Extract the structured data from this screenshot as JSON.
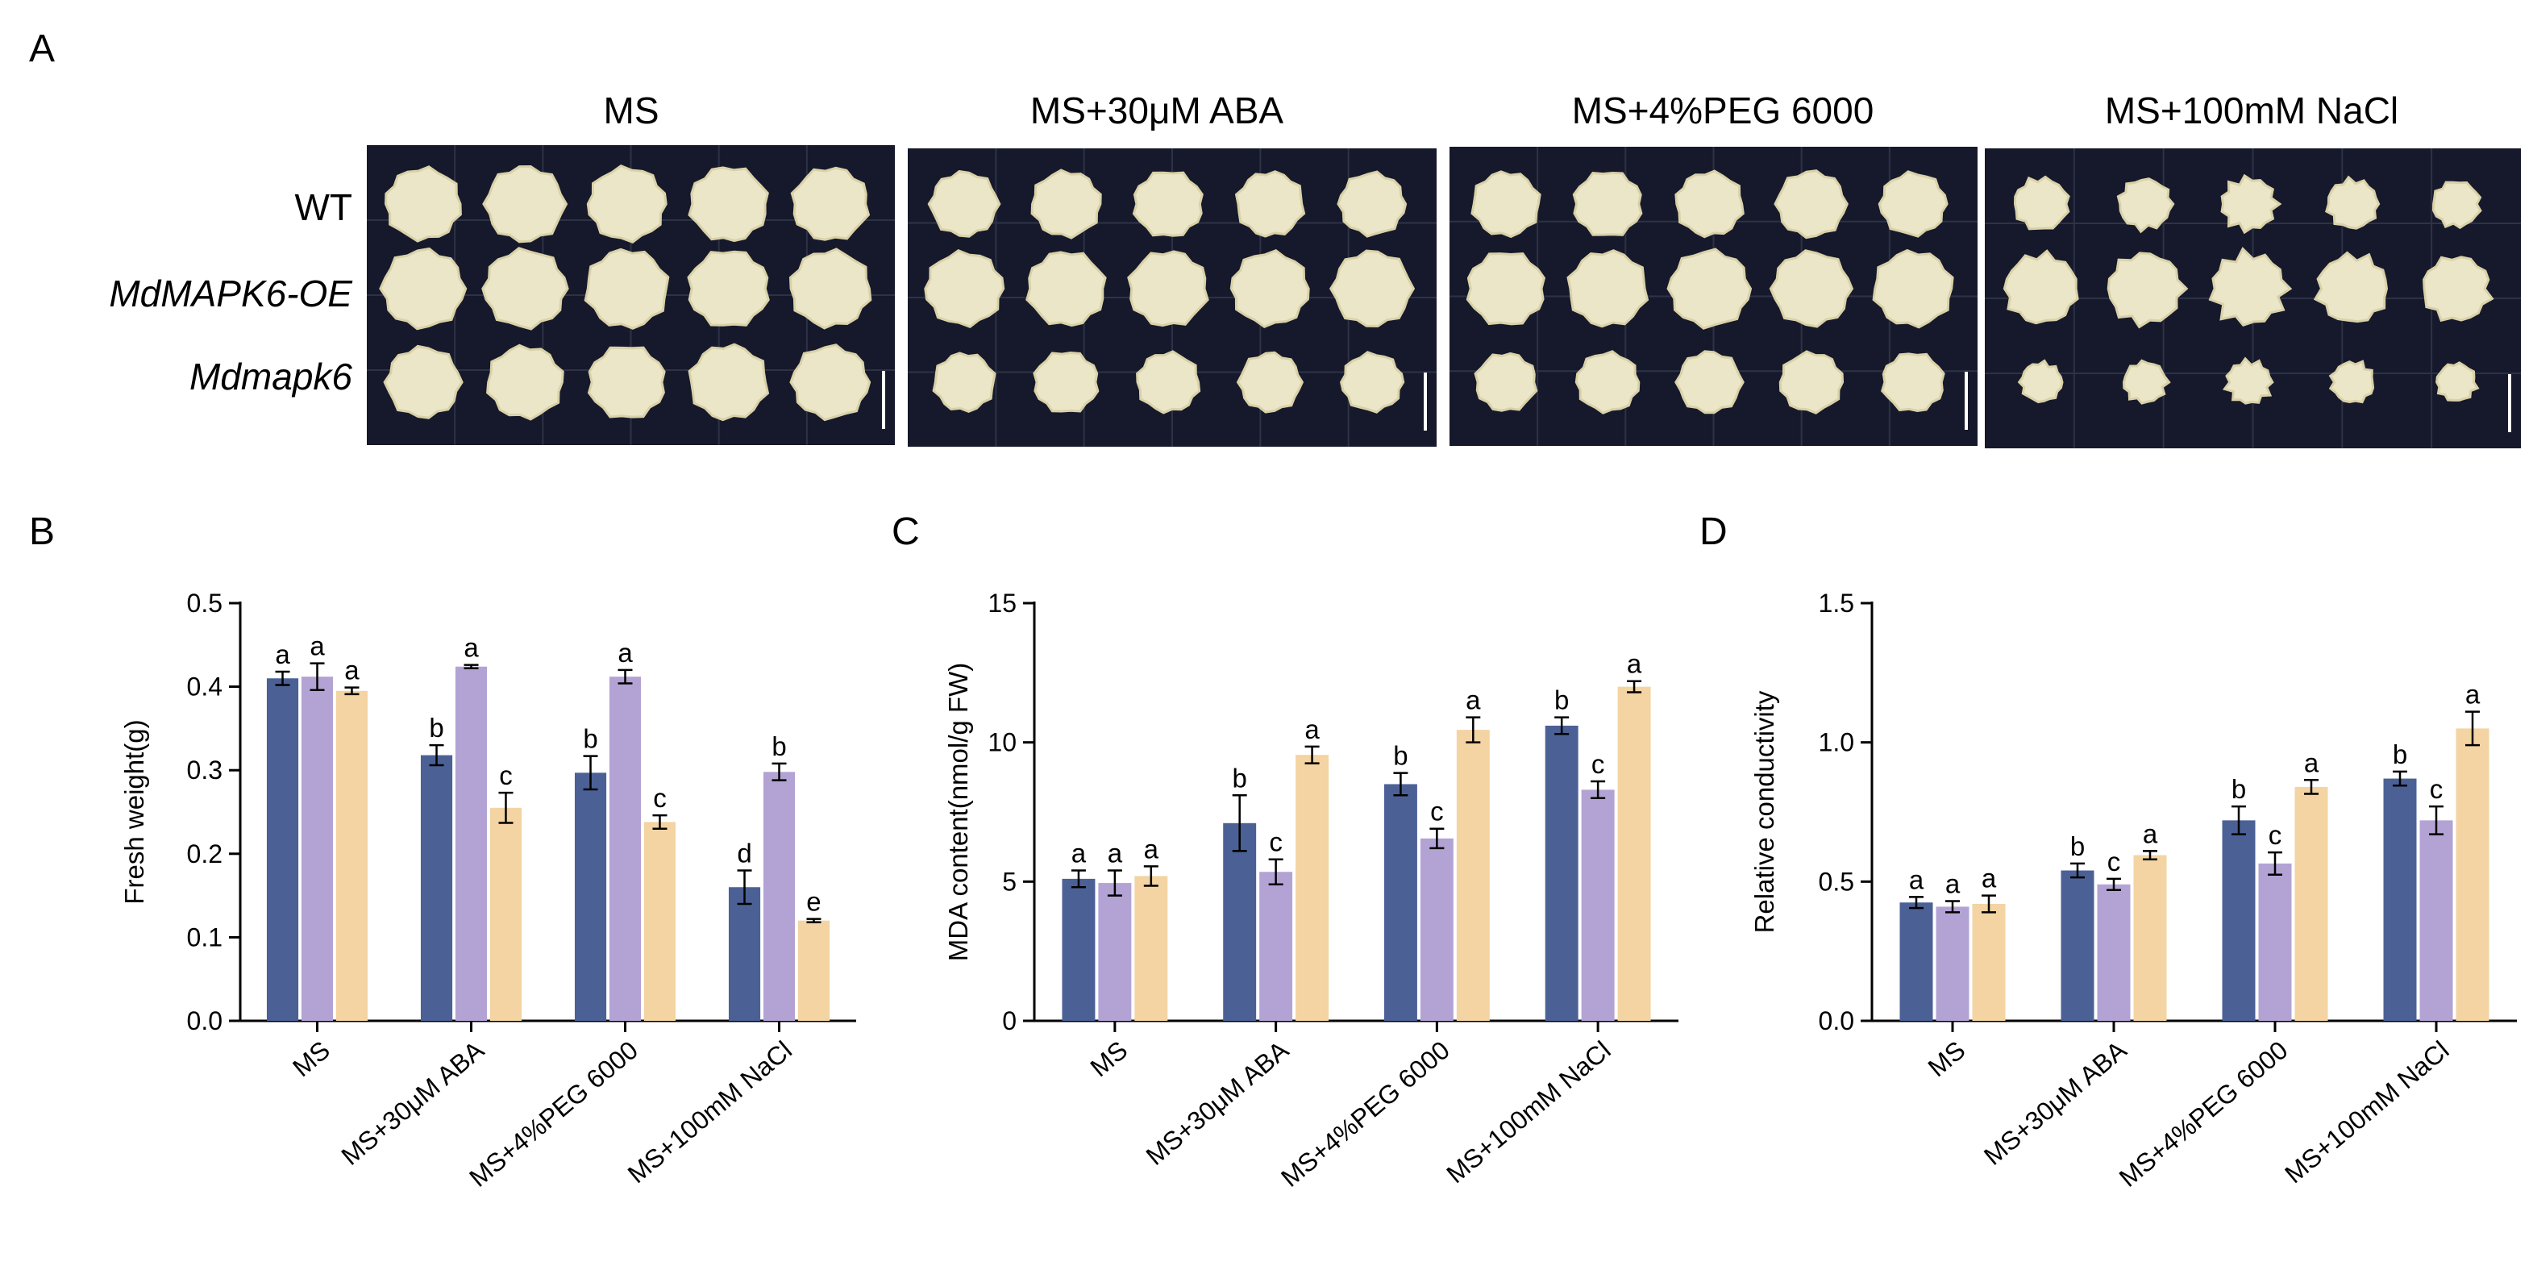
{
  "panels": {
    "A": "A",
    "B": "B",
    "C": "C",
    "D": "D"
  },
  "photo_panel": {
    "conditions": [
      "MS",
      "MS+30μM ABA",
      "MS+4%PEG 6000",
      "MS+100mM NaCl"
    ],
    "rows": [
      "WT",
      "MdMAPK6-OE",
      "Mdmapk6"
    ],
    "callus_sizes": [
      [
        [
          0.92,
          0.96,
          0.94,
          0.95,
          0.93
        ],
        [
          1.0,
          1.0,
          1.0,
          0.98,
          0.98
        ],
        [
          0.9,
          0.92,
          0.93,
          0.95,
          0.93
        ]
      ],
      [
        [
          0.82,
          0.84,
          0.84,
          0.82,
          0.8
        ],
        [
          0.94,
          0.95,
          0.96,
          0.94,
          0.96
        ],
        [
          0.74,
          0.78,
          0.76,
          0.75,
          0.74
        ]
      ],
      [
        [
          0.82,
          0.83,
          0.82,
          0.84,
          0.8
        ],
        [
          0.94,
          0.96,
          0.98,
          0.95,
          0.96
        ],
        [
          0.74,
          0.76,
          0.78,
          0.76,
          0.75
        ]
      ],
      [
        [
          0.66,
          0.64,
          0.66,
          0.62,
          0.58
        ],
        [
          0.88,
          0.9,
          0.9,
          0.86,
          0.82
        ],
        [
          0.5,
          0.52,
          0.54,
          0.52,
          0.48
        ]
      ]
    ],
    "colors": {
      "background": "#16192b",
      "grid": "#2d3246",
      "callus": "#ebe6c7",
      "callus_edge": "#d9d1a8",
      "scale_bar": "#ffffff"
    }
  },
  "series_colors": [
    "#4b6196",
    "#b3a3d4",
    "#f3d4a2"
  ],
  "chart_data": [
    {
      "type": "bar",
      "id": "B",
      "title": "",
      "ylabel": "Fresh weight(g)",
      "xlabel": "",
      "ylim": [
        0,
        0.5
      ],
      "yticks": [
        0.0,
        0.1,
        0.2,
        0.3,
        0.4,
        0.5
      ],
      "ytick_labels": [
        "0.0",
        "0.1",
        "0.2",
        "0.3",
        "0.4",
        "0.5"
      ],
      "categories": [
        "MS",
        "MS+30μM ABA",
        "MS+4%PEG 6000",
        "MS+100mM NaCl"
      ],
      "series": [
        {
          "name": "WT",
          "values": [
            0.41,
            0.318,
            0.297,
            0.16
          ],
          "errors": [
            0.008,
            0.012,
            0.02,
            0.02
          ],
          "labels": [
            "a",
            "b",
            "b",
            "d"
          ]
        },
        {
          "name": "MdMAPK6-OE",
          "values": [
            0.412,
            0.424,
            0.412,
            0.298
          ],
          "errors": [
            0.016,
            0.002,
            0.008,
            0.01
          ],
          "labels": [
            "a",
            "a",
            "a",
            "b"
          ]
        },
        {
          "name": "Mdmapk6",
          "values": [
            0.395,
            0.255,
            0.238,
            0.12
          ],
          "errors": [
            0.004,
            0.018,
            0.008,
            0.002
          ],
          "labels": [
            "a",
            "c",
            "c",
            "e"
          ]
        }
      ]
    },
    {
      "type": "bar",
      "id": "C",
      "title": "",
      "ylabel": "MDA content(nmol/g FW)",
      "xlabel": "",
      "ylim": [
        0,
        15
      ],
      "yticks": [
        0,
        5,
        10,
        15
      ],
      "ytick_labels": [
        "0",
        "5",
        "10",
        "15"
      ],
      "categories": [
        "MS",
        "MS+30μM ABA",
        "MS+4%PEG 6000",
        "MS+100mM NaCl"
      ],
      "series": [
        {
          "name": "WT",
          "values": [
            5.1,
            7.1,
            8.5,
            10.6
          ],
          "errors": [
            0.3,
            1.0,
            0.4,
            0.3
          ],
          "labels": [
            "a",
            "b",
            "b",
            "b"
          ]
        },
        {
          "name": "MdMAPK6-OE",
          "values": [
            4.95,
            5.35,
            6.55,
            8.3
          ],
          "errors": [
            0.45,
            0.45,
            0.35,
            0.3
          ],
          "labels": [
            "a",
            "c",
            "c",
            "c"
          ]
        },
        {
          "name": "Mdmapk6",
          "values": [
            5.2,
            9.55,
            10.45,
            12.0
          ],
          "errors": [
            0.35,
            0.3,
            0.45,
            0.2
          ],
          "labels": [
            "a",
            "a",
            "a",
            "a"
          ]
        }
      ]
    },
    {
      "type": "bar",
      "id": "D",
      "title": "",
      "ylabel": "Relative conductivity",
      "xlabel": "",
      "ylim": [
        0,
        1.5
      ],
      "yticks": [
        0.0,
        0.5,
        1.0,
        1.5
      ],
      "ytick_labels": [
        "0.0",
        "0.5",
        "1.0",
        "1.5"
      ],
      "categories": [
        "MS",
        "MS+30μM ABA",
        "MS+4%PEG 6000",
        "MS+100mM NaCl"
      ],
      "series": [
        {
          "name": "WT",
          "values": [
            0.425,
            0.54,
            0.72,
            0.87
          ],
          "errors": [
            0.02,
            0.025,
            0.05,
            0.025
          ],
          "labels": [
            "a",
            "b",
            "b",
            "b"
          ]
        },
        {
          "name": "MdMAPK6-OE",
          "values": [
            0.41,
            0.49,
            0.565,
            0.72
          ],
          "errors": [
            0.02,
            0.02,
            0.04,
            0.05
          ],
          "labels": [
            "a",
            "c",
            "c",
            "c"
          ]
        },
        {
          "name": "Mdmapk6",
          "values": [
            0.42,
            0.595,
            0.84,
            1.05
          ],
          "errors": [
            0.03,
            0.015,
            0.025,
            0.06
          ],
          "labels": [
            "a",
            "a",
            "a",
            "a"
          ]
        }
      ]
    }
  ]
}
